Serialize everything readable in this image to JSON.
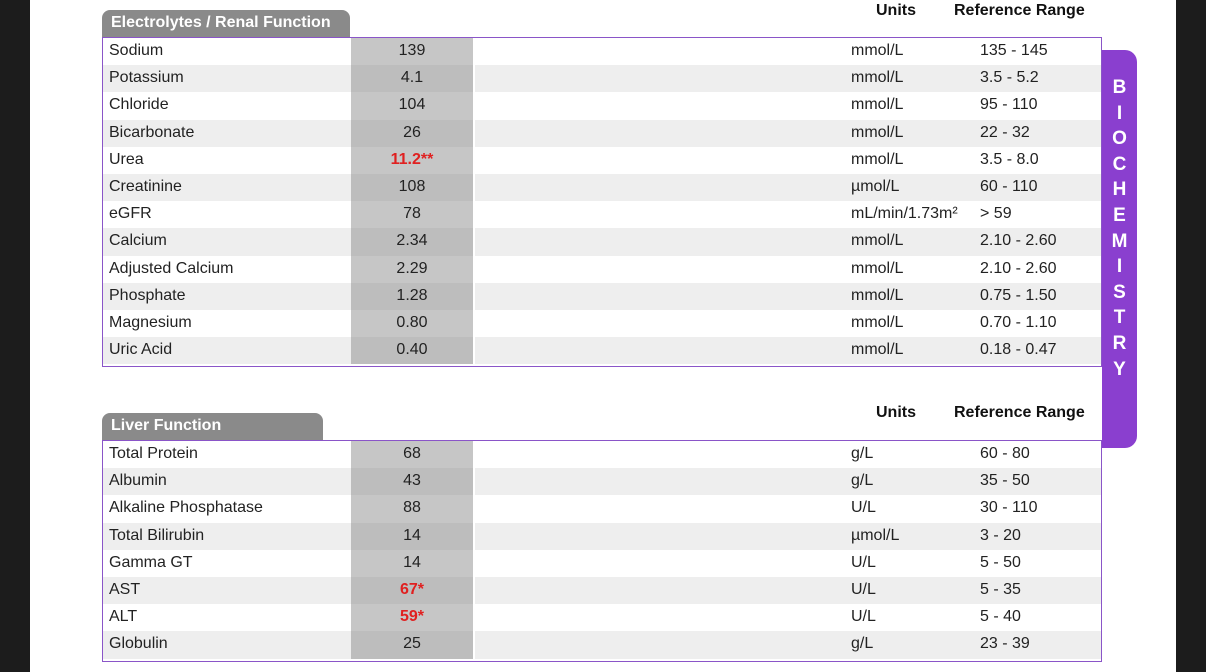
{
  "sections": [
    {
      "title": "Electrolytes / Renal Function",
      "units_header": "Units",
      "range_header": "Reference Range",
      "rows": [
        {
          "name": "Sodium",
          "result": "139",
          "unit": "mmol/L",
          "range": "135 - 145",
          "flag": false
        },
        {
          "name": "Potassium",
          "result": "4.1",
          "unit": "mmol/L",
          "range": "3.5 - 5.2",
          "flag": false
        },
        {
          "name": "Chloride",
          "result": "104",
          "unit": "mmol/L",
          "range": "95 - 110",
          "flag": false
        },
        {
          "name": "Bicarbonate",
          "result": "26",
          "unit": "mmol/L",
          "range": "22 - 32",
          "flag": false
        },
        {
          "name": "Urea",
          "result": "11.2**",
          "unit": "mmol/L",
          "range": "3.5 - 8.0",
          "flag": true
        },
        {
          "name": "Creatinine",
          "result": "108",
          "unit": "µmol/L",
          "range": "60 - 110",
          "flag": false
        },
        {
          "name": "eGFR",
          "result": "78",
          "unit": "mL/min/1.73m²",
          "range": "> 59",
          "flag": false
        },
        {
          "name": "Calcium",
          "result": "2.34",
          "unit": "mmol/L",
          "range": "2.10 - 2.60",
          "flag": false
        },
        {
          "name": "Adjusted Calcium",
          "result": "2.29",
          "unit": "mmol/L",
          "range": "2.10 - 2.60",
          "flag": false
        },
        {
          "name": "Phosphate",
          "result": "1.28",
          "unit": "mmol/L",
          "range": "0.75 - 1.50",
          "flag": false
        },
        {
          "name": "Magnesium",
          "result": "0.80",
          "unit": "mmol/L",
          "range": "0.70 - 1.10",
          "flag": false
        },
        {
          "name": "Uric Acid",
          "result": "0.40",
          "unit": "mmol/L",
          "range": "0.18 - 0.47",
          "flag": false
        }
      ]
    },
    {
      "title": "Liver Function",
      "units_header": "Units",
      "range_header": "Reference Range",
      "rows": [
        {
          "name": "Total Protein",
          "result": "68",
          "unit": "g/L",
          "range": "60 - 80",
          "flag": false
        },
        {
          "name": "Albumin",
          "result": "43",
          "unit": "g/L",
          "range": "35 - 50",
          "flag": false
        },
        {
          "name": "Alkaline Phosphatase",
          "result": "88",
          "unit": "U/L",
          "range": "30 - 110",
          "flag": false
        },
        {
          "name": "Total Bilirubin",
          "result": "14",
          "unit": "µmol/L",
          "range": "3 - 20",
          "flag": false
        },
        {
          "name": "Gamma GT",
          "result": "14",
          "unit": "U/L",
          "range": "5 - 50",
          "flag": false
        },
        {
          "name": "AST",
          "result": "67*",
          "unit": "U/L",
          "range": "5 - 35",
          "flag": true
        },
        {
          "name": "ALT",
          "result": "59*",
          "unit": "U/L",
          "range": "5 - 40",
          "flag": true
        },
        {
          "name": "Globulin",
          "result": "25",
          "unit": "g/L",
          "range": "23 - 39",
          "flag": false
        }
      ]
    }
  ],
  "side_label": "BIOCHEMISTRY",
  "colors": {
    "accent": "#8a3fcf",
    "flag": "#e02020",
    "tab": "#8a8a8a"
  }
}
